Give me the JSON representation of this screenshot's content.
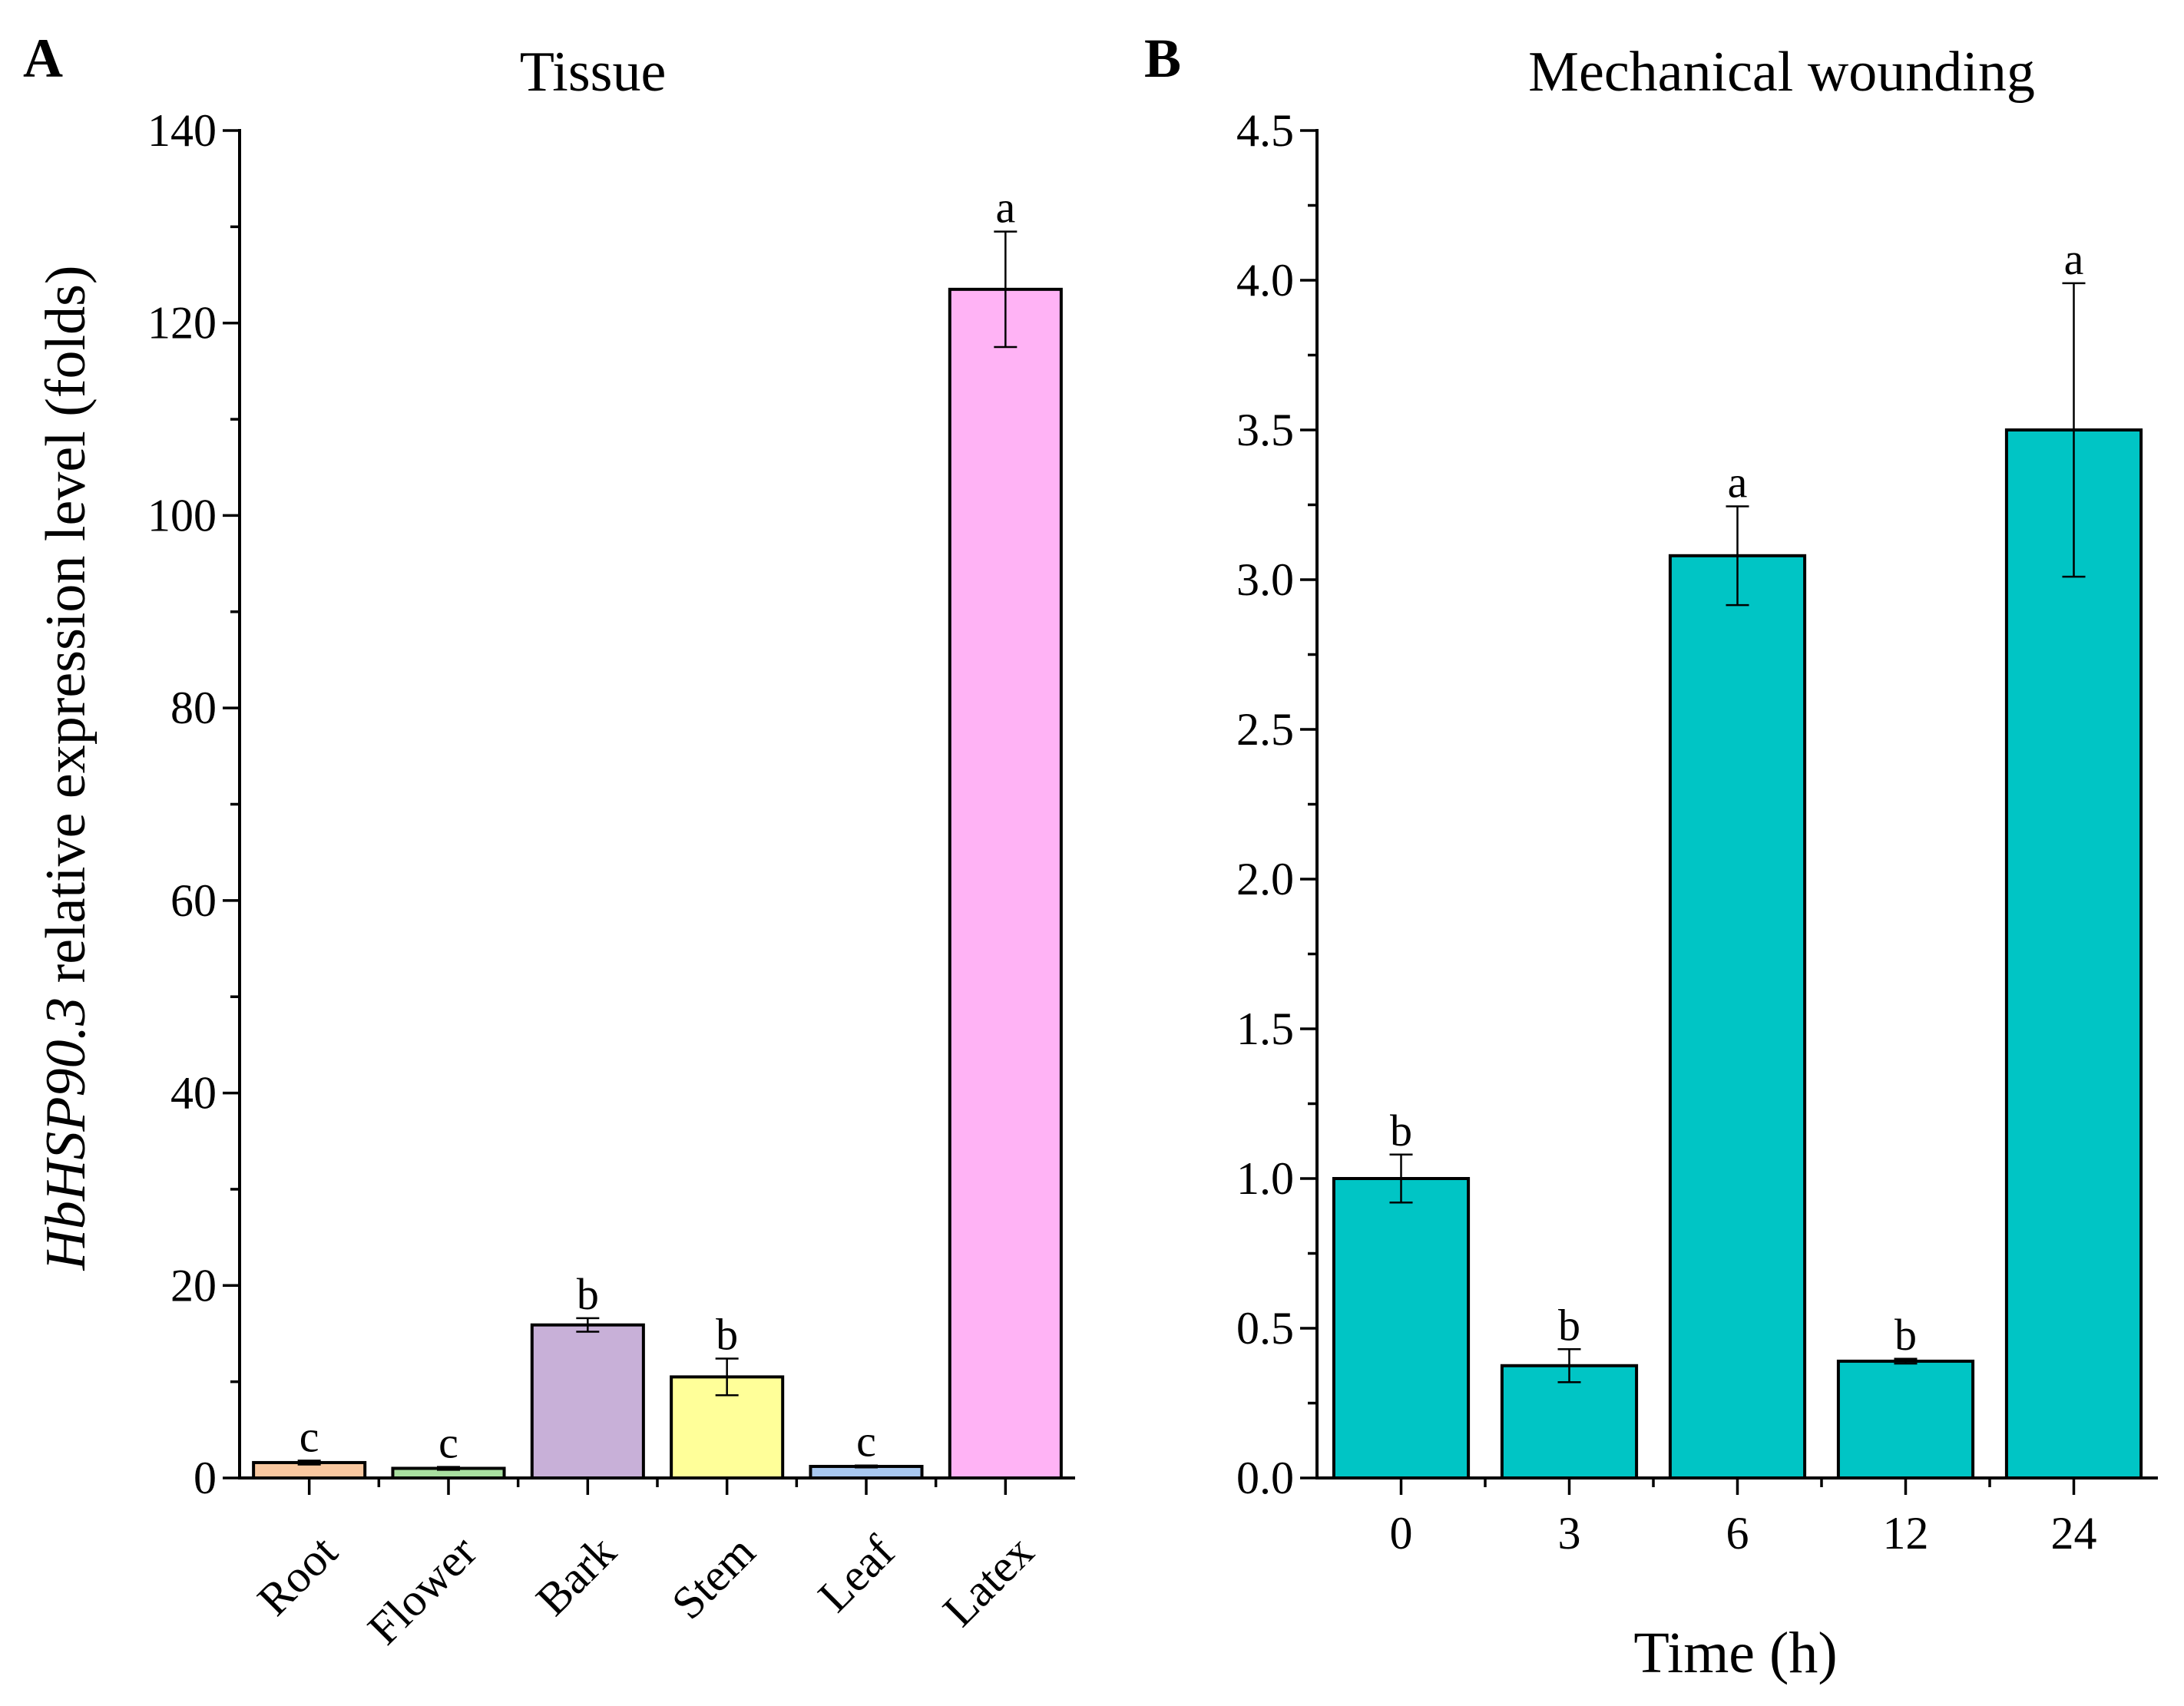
{
  "chart_data": [
    {
      "panel": "A",
      "type": "bar",
      "title": "Tissue",
      "ylabel_italic": "HbHSP90.3",
      "ylabel_rest": " relative expression level (folds)",
      "xlabel": "",
      "categories": [
        "Root",
        "Flower",
        "Bark",
        "Stem",
        "Leaf",
        "Latex"
      ],
      "values": [
        1.6,
        1.0,
        15.9,
        10.5,
        1.2,
        123.5
      ],
      "errors": [
        0.2,
        0.15,
        0.7,
        1.9,
        0.1,
        6.0
      ],
      "significance": [
        "c",
        "c",
        "b",
        "b",
        "c",
        "a"
      ],
      "colors": [
        "#f9c8a0",
        "#a8dfa0",
        "#c8b0d8",
        "#ffff99",
        "#a8c8f0",
        "#ffb3f5"
      ],
      "ylim": [
        0,
        140
      ],
      "yticks": [
        0,
        20,
        40,
        60,
        80,
        100,
        120,
        140
      ],
      "ytick_labels": [
        "0",
        "20",
        "40",
        "60",
        "80",
        "100",
        "120",
        "140"
      ],
      "x_tick_rotation": "45 degrees",
      "grid": false
    },
    {
      "panel": "B",
      "type": "bar",
      "title": "Mechanical wounding",
      "ylabel": "",
      "xlabel": "Time (h)",
      "categories": [
        "0",
        "3",
        "6",
        "12",
        "24"
      ],
      "values": [
        1.0,
        0.375,
        3.08,
        0.39,
        3.5
      ],
      "errors": [
        0.08,
        0.055,
        0.165,
        0.008,
        0.49
      ],
      "significance": [
        "b",
        "b",
        "a",
        "b",
        "a"
      ],
      "color": "#00c5c5",
      "ylim": [
        0,
        4.5
      ],
      "yticks": [
        0,
        0.5,
        1.0,
        1.5,
        2.0,
        2.5,
        3.0,
        3.5,
        4.0,
        4.5
      ],
      "ytick_labels": [
        "0.0",
        "0.5",
        "1.0",
        "1.5",
        "2.0",
        "2.5",
        "3.0",
        "3.5",
        "4.0",
        "4.5"
      ],
      "grid": false
    }
  ]
}
